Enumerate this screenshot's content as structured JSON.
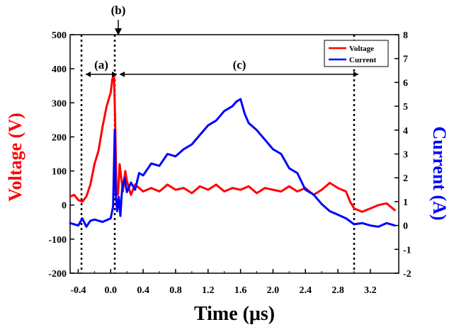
{
  "chart_data": {
    "type": "line",
    "xlabel": "Time (μs)",
    "ylabel": "Voltage (V)",
    "y2label": "Current (A)",
    "xlim": [
      -0.5,
      3.55
    ],
    "ylim": [
      -200,
      500
    ],
    "y2lim": [
      -2,
      8
    ],
    "x_ticks": [
      -0.4,
      0.0,
      0.4,
      0.8,
      1.2,
      1.6,
      2.0,
      2.4,
      2.8,
      3.2
    ],
    "x_tick_labels": [
      "-0.4",
      "0.0",
      "0.4",
      "0.8",
      "1.2",
      "1.6",
      "2.0",
      "2.4",
      "2.8",
      "3.2"
    ],
    "y_ticks": [
      -200,
      -100,
      0,
      100,
      200,
      300,
      400,
      500
    ],
    "y_tick_labels": [
      "-200",
      "-100",
      "0",
      "100",
      "200",
      "300",
      "400",
      "500"
    ],
    "y2_ticks": [
      -2,
      -1,
      0,
      1,
      2,
      3,
      4,
      5,
      6,
      7,
      8
    ],
    "y2_tick_labels": [
      "-2",
      "-1",
      "0",
      "1",
      "2",
      "3",
      "4",
      "5",
      "6",
      "7",
      "8"
    ],
    "legend_position": "top-right",
    "grid": false,
    "series": [
      {
        "name": "Voltage",
        "axis": "left",
        "color": "#ff0000",
        "x": [
          -0.5,
          -0.45,
          -0.4,
          -0.35,
          -0.3,
          -0.25,
          -0.2,
          -0.15,
          -0.1,
          -0.05,
          0.0,
          0.02,
          0.04,
          0.05,
          0.06,
          0.07,
          0.09,
          0.11,
          0.13,
          0.15,
          0.18,
          0.2,
          0.25,
          0.3,
          0.35,
          0.4,
          0.5,
          0.6,
          0.7,
          0.8,
          0.9,
          1.0,
          1.1,
          1.2,
          1.3,
          1.4,
          1.5,
          1.6,
          1.7,
          1.8,
          1.9,
          2.0,
          2.1,
          2.2,
          2.3,
          2.4,
          2.5,
          2.6,
          2.7,
          2.8,
          2.9,
          2.95,
          3.0,
          3.1,
          3.2,
          3.3,
          3.4,
          3.5
        ],
        "values": [
          25,
          30,
          15,
          10,
          25,
          60,
          120,
          160,
          230,
          290,
          330,
          370,
          380,
          300,
          180,
          60,
          30,
          120,
          80,
          40,
          100,
          70,
          30,
          60,
          50,
          40,
          50,
          40,
          60,
          45,
          50,
          35,
          55,
          45,
          60,
          40,
          50,
          45,
          55,
          35,
          50,
          45,
          40,
          55,
          40,
          50,
          30,
          45,
          65,
          50,
          40,
          10,
          -10,
          -20,
          -10,
          0,
          5,
          -15
        ]
      },
      {
        "name": "Current",
        "axis": "right",
        "color": "#0000ff",
        "x": [
          -0.5,
          -0.4,
          -0.35,
          -0.3,
          -0.25,
          -0.2,
          -0.1,
          0.0,
          0.03,
          0.05,
          0.06,
          0.07,
          0.08,
          0.1,
          0.12,
          0.14,
          0.17,
          0.2,
          0.25,
          0.3,
          0.35,
          0.4,
          0.5,
          0.6,
          0.7,
          0.8,
          0.9,
          1.0,
          1.1,
          1.2,
          1.3,
          1.4,
          1.5,
          1.55,
          1.6,
          1.65,
          1.7,
          1.8,
          1.9,
          2.0,
          2.1,
          2.2,
          2.3,
          2.4,
          2.5,
          2.6,
          2.7,
          2.8,
          2.9,
          3.0,
          3.1,
          3.2,
          3.3,
          3.4,
          3.5
        ],
        "values": [
          0.1,
          0.0,
          0.3,
          -0.05,
          0.2,
          0.25,
          0.15,
          0.3,
          0.8,
          4.0,
          1.5,
          1.0,
          0.6,
          1.2,
          0.4,
          1.5,
          2.0,
          1.4,
          1.8,
          1.5,
          2.2,
          2.1,
          2.6,
          2.5,
          3.0,
          2.9,
          3.2,
          3.4,
          3.8,
          4.2,
          4.4,
          4.8,
          5.0,
          5.2,
          5.3,
          4.7,
          4.3,
          4.0,
          3.6,
          3.2,
          3.0,
          2.4,
          2.2,
          1.5,
          1.3,
          0.9,
          0.6,
          0.45,
          0.3,
          0.05,
          0.1,
          0.0,
          -0.05,
          0.1,
          0.0
        ]
      }
    ],
    "markers": [
      {
        "x": -0.36,
        "style": "dotted"
      },
      {
        "x": 0.05,
        "style": "dotted"
      },
      {
        "x": 3.0,
        "style": "dotted"
      }
    ],
    "annotations": {
      "a": "(a)",
      "b": "(b)",
      "c": "(c)"
    }
  }
}
